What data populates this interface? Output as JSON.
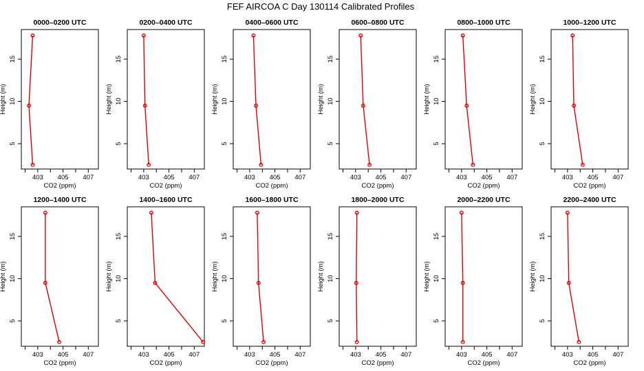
{
  "title": "FEF AIRCOA C  Day 130114  Calibrated Profiles",
  "colors": {
    "series": "#dd0000",
    "axes": "#000000"
  },
  "chart_data": [
    {
      "type": "line",
      "title": "0000–0200 UTC",
      "xlabel": "CO2 (ppm)",
      "ylabel": "Height (m)",
      "xlim": [
        401.7,
        407.8
      ],
      "ylim": [
        2,
        18.5
      ],
      "xticks": [
        "403",
        "405",
        "407"
      ],
      "yticks": [
        "5",
        "10",
        "15"
      ],
      "x": [
        402.6,
        402.3,
        402.6
      ],
      "y": [
        17.8,
        9.5,
        2.5
      ]
    },
    {
      "type": "line",
      "title": "0200–0400 UTC",
      "xlabel": "CO2 (ppm)",
      "ylabel": "Height (m)",
      "xlim": [
        401.7,
        407.8
      ],
      "ylim": [
        2,
        18.5
      ],
      "xticks": [
        "403",
        "405",
        "407"
      ],
      "yticks": [
        "5",
        "10",
        "15"
      ],
      "x": [
        403.0,
        403.1,
        403.4
      ],
      "y": [
        17.8,
        9.5,
        2.5
      ]
    },
    {
      "type": "line",
      "title": "0400–0600 UTC",
      "xlabel": "CO2 (ppm)",
      "ylabel": "Height (m)",
      "xlim": [
        401.7,
        407.8
      ],
      "ylim": [
        2,
        18.5
      ],
      "xticks": [
        "403",
        "405",
        "407"
      ],
      "yticks": [
        "5",
        "10",
        "15"
      ],
      "x": [
        403.3,
        403.5,
        403.9
      ],
      "y": [
        17.8,
        9.5,
        2.5
      ]
    },
    {
      "type": "line",
      "title": "0600–0800 UTC",
      "xlabel": "CO2 (ppm)",
      "ylabel": "Height (m)",
      "xlim": [
        401.7,
        407.8
      ],
      "ylim": [
        2,
        18.5
      ],
      "xticks": [
        "403",
        "405",
        "407"
      ],
      "yticks": [
        "5",
        "10",
        "15"
      ],
      "x": [
        403.4,
        403.6,
        404.1
      ],
      "y": [
        17.8,
        9.5,
        2.5
      ]
    },
    {
      "type": "line",
      "title": "0800–1000 UTC",
      "xlabel": "CO2 (ppm)",
      "ylabel": "Height (m)",
      "xlim": [
        401.7,
        407.8
      ],
      "ylim": [
        2,
        18.5
      ],
      "xticks": [
        "403",
        "405",
        "407"
      ],
      "yticks": [
        "5",
        "10",
        "15"
      ],
      "x": [
        403.1,
        403.4,
        403.9
      ],
      "y": [
        17.8,
        9.5,
        2.5
      ]
    },
    {
      "type": "line",
      "title": "1000–1200 UTC",
      "xlabel": "CO2 (ppm)",
      "ylabel": "Height (m)",
      "xlim": [
        401.7,
        407.8
      ],
      "ylim": [
        2,
        18.5
      ],
      "xticks": [
        "403",
        "405",
        "407"
      ],
      "yticks": [
        "5",
        "10",
        "15"
      ],
      "x": [
        403.4,
        403.5,
        404.2
      ],
      "y": [
        17.8,
        9.5,
        2.5
      ]
    },
    {
      "type": "line",
      "title": "1200–1400 UTC",
      "xlabel": "CO2 (ppm)",
      "ylabel": "Height (m)",
      "xlim": [
        401.7,
        407.8
      ],
      "ylim": [
        2,
        18.5
      ],
      "xticks": [
        "403",
        "405",
        "407"
      ],
      "yticks": [
        "5",
        "10",
        "15"
      ],
      "x": [
        403.6,
        403.6,
        404.7
      ],
      "y": [
        17.8,
        9.5,
        2.5
      ]
    },
    {
      "type": "line",
      "title": "1400–1600 UTC",
      "xlabel": "CO2 (ppm)",
      "ylabel": "Height (m)",
      "xlim": [
        401.7,
        407.8
      ],
      "ylim": [
        2,
        18.5
      ],
      "xticks": [
        "403",
        "405",
        "407"
      ],
      "yticks": [
        "5",
        "10",
        "15"
      ],
      "x": [
        403.6,
        403.9,
        407.7
      ],
      "y": [
        17.8,
        9.5,
        2.5
      ]
    },
    {
      "type": "line",
      "title": "1600–1800 UTC",
      "xlabel": "CO2 (ppm)",
      "ylabel": "Height (m)",
      "xlim": [
        401.7,
        407.8
      ],
      "ylim": [
        2,
        18.5
      ],
      "xticks": [
        "403",
        "405",
        "407"
      ],
      "yticks": [
        "5",
        "10",
        "15"
      ],
      "x": [
        403.6,
        403.7,
        404.1
      ],
      "y": [
        17.8,
        9.5,
        2.5
      ]
    },
    {
      "type": "line",
      "title": "1800–2000 UTC",
      "xlabel": "CO2 (ppm)",
      "ylabel": "Height (m)",
      "xlim": [
        401.7,
        407.8
      ],
      "ylim": [
        2,
        18.5
      ],
      "xticks": [
        "403",
        "405",
        "407"
      ],
      "yticks": [
        "5",
        "10",
        "15"
      ],
      "x": [
        403.1,
        403.05,
        403.1
      ],
      "y": [
        17.8,
        9.5,
        2.5
      ]
    },
    {
      "type": "line",
      "title": "2000–2200 UTC",
      "xlabel": "CO2 (ppm)",
      "ylabel": "Height (m)",
      "xlim": [
        401.7,
        407.8
      ],
      "ylim": [
        2,
        18.5
      ],
      "xticks": [
        "403",
        "405",
        "407"
      ],
      "yticks": [
        "5",
        "10",
        "15"
      ],
      "x": [
        403.0,
        403.1,
        403.1
      ],
      "y": [
        17.8,
        9.5,
        2.5
      ]
    },
    {
      "type": "line",
      "title": "2200–2400 UTC",
      "xlabel": "CO2 (ppm)",
      "ylabel": "Height (m)",
      "xlim": [
        401.7,
        407.8
      ],
      "ylim": [
        2,
        18.5
      ],
      "xticks": [
        "403",
        "405",
        "407"
      ],
      "yticks": [
        "5",
        "10",
        "15"
      ],
      "x": [
        403.0,
        403.1,
        403.9
      ],
      "y": [
        17.8,
        9.5,
        2.5
      ]
    }
  ]
}
